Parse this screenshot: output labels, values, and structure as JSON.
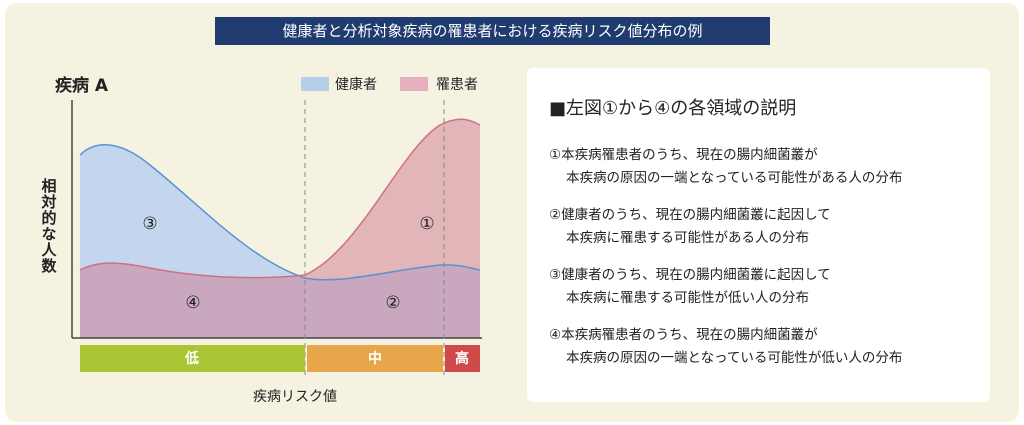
{
  "title": "健康者と分析対象疾病の罹患者における疾病リスク値分布の例",
  "chart": {
    "label": "疾病 A",
    "legend": [
      "健康者",
      "罹患者"
    ],
    "y_label": "相対的な人数",
    "regions": [
      "①",
      "②",
      "③",
      "④"
    ],
    "risk_bands": [
      "低",
      "中",
      "高"
    ],
    "x_label": "疾病リスク値"
  },
  "explanation": {
    "heading": "■左図①から④の各領域の説明",
    "items": [
      [
        "①本疾病罹患者のうち、現在の腸内細菌叢が",
        "本疾病の原因の一端となっている可能性がある人の分布"
      ],
      [
        "②健康者のうち、現在の腸内細菌叢に起因して",
        "本疾病に罹患する可能性がある人の分布"
      ],
      [
        "③健康者のうち、現在の腸内細菌叢に起因して",
        "本疾病に罹患する可能性が低い人の分布"
      ],
      [
        "④本疾病罹患者のうち、現在の腸内細菌叢が",
        "本疾病の原因の一端となっている可能性が低い人の分布"
      ]
    ]
  }
}
